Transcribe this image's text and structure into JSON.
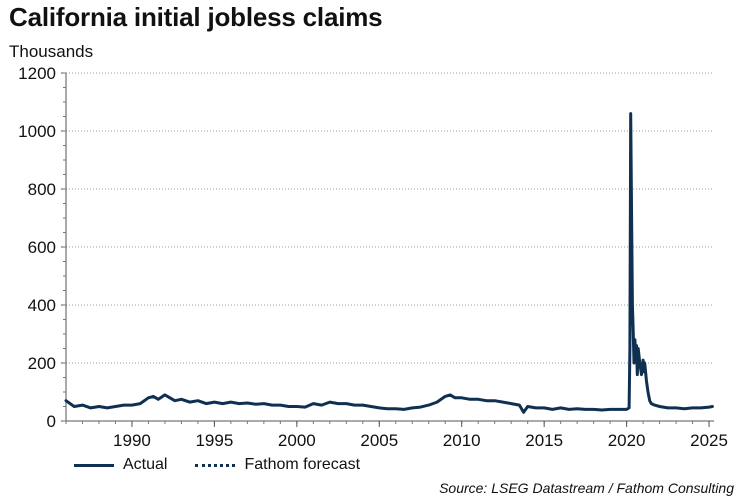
{
  "chart_data": {
    "type": "line",
    "title": "California initial jobless claims",
    "ylabel": "Thousands",
    "xlabel": "",
    "xlim": [
      1986,
      2025.3
    ],
    "ylim": [
      0,
      1200
    ],
    "yticks": [
      0,
      200,
      400,
      600,
      800,
      1000,
      1200
    ],
    "xticks": [
      1990,
      1995,
      2000,
      2005,
      2010,
      2015,
      2020,
      2025
    ],
    "grid": "horizontal dotted",
    "legend_position": "bottom-left",
    "series": [
      {
        "name": "Actual",
        "style": "solid",
        "color": "#0f3050",
        "x": [
          1986.0,
          1986.5,
          1987.0,
          1987.5,
          1988.0,
          1988.5,
          1989.0,
          1989.5,
          1990.0,
          1990.5,
          1991.0,
          1991.3,
          1991.6,
          1992.0,
          1992.3,
          1992.6,
          1993.0,
          1993.5,
          1994.0,
          1994.5,
          1995.0,
          1995.5,
          1996.0,
          1996.5,
          1997.0,
          1997.5,
          1998.0,
          1998.5,
          1999.0,
          1999.5,
          2000.0,
          2000.5,
          2001.0,
          2001.5,
          2002.0,
          2002.5,
          2003.0,
          2003.5,
          2004.0,
          2004.5,
          2005.0,
          2005.5,
          2006.0,
          2006.5,
          2007.0,
          2007.5,
          2008.0,
          2008.5,
          2009.0,
          2009.3,
          2009.6,
          2010.0,
          2010.5,
          2011.0,
          2011.5,
          2012.0,
          2012.5,
          2013.0,
          2013.5,
          2013.75,
          2014.0,
          2014.5,
          2015.0,
          2015.5,
          2016.0,
          2016.5,
          2017.0,
          2017.5,
          2018.0,
          2018.5,
          2019.0,
          2019.5,
          2020.0,
          2020.15,
          2020.2,
          2020.25,
          2020.3,
          2020.35,
          2020.4,
          2020.45,
          2020.5,
          2020.55,
          2020.6,
          2020.65,
          2020.7,
          2020.8,
          2020.9,
          2021.0,
          2021.05,
          2021.1,
          2021.2,
          2021.3,
          2021.4,
          2021.5,
          2021.7,
          2022.0,
          2022.5,
          2023.0,
          2023.5,
          2024.0,
          2024.5,
          2025.0,
          2025.2
        ],
        "values": [
          70,
          50,
          55,
          45,
          50,
          45,
          50,
          55,
          55,
          60,
          80,
          85,
          75,
          90,
          80,
          70,
          75,
          65,
          70,
          60,
          65,
          60,
          65,
          60,
          62,
          58,
          60,
          55,
          55,
          50,
          50,
          48,
          60,
          55,
          65,
          60,
          60,
          55,
          55,
          50,
          45,
          42,
          42,
          40,
          45,
          48,
          55,
          65,
          85,
          90,
          80,
          80,
          75,
          75,
          70,
          70,
          65,
          60,
          55,
          30,
          50,
          45,
          45,
          40,
          45,
          40,
          42,
          40,
          40,
          38,
          40,
          40,
          40,
          45,
          250,
          1060,
          700,
          400,
          310,
          200,
          280,
          220,
          260,
          160,
          250,
          200,
          160,
          210,
          170,
          200,
          140,
          100,
          70,
          60,
          55,
          50,
          45,
          45,
          42,
          45,
          45,
          48,
          50
        ]
      },
      {
        "name": "Fathom forecast",
        "style": "dotted",
        "color": "#0f3050",
        "x": [],
        "values": []
      }
    ]
  },
  "source_text": "Source: LSEG Datastream / Fathom Consulting"
}
